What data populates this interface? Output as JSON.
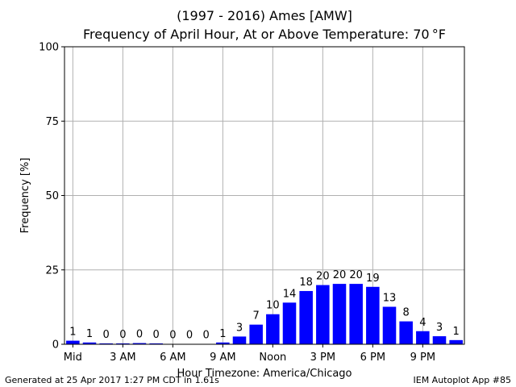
{
  "chart_data": {
    "type": "bar",
    "title": "(1997 - 2016) Ames [AMW]",
    "subtitle": "Frequency of April Hour, At or Above Temperature: 70 °F",
    "xlabel": "Hour Timezone: America/Chicago",
    "ylabel": "Frequency [%]",
    "ylim": [
      0,
      100
    ],
    "yticks": [
      0,
      25,
      50,
      75,
      100
    ],
    "xlim": [
      -0.5,
      23.5
    ],
    "xticks": [
      {
        "hour": 0,
        "label": "Mid"
      },
      {
        "hour": 3,
        "label": "3 AM"
      },
      {
        "hour": 6,
        "label": "6 AM"
      },
      {
        "hour": 9,
        "label": "9 AM"
      },
      {
        "hour": 12,
        "label": "Noon"
      },
      {
        "hour": 15,
        "label": "3 PM"
      },
      {
        "hour": 18,
        "label": "6 PM"
      },
      {
        "hour": 21,
        "label": "9 PM"
      }
    ],
    "grid": true,
    "bar_color": "#0000ff",
    "hours": [
      0,
      1,
      2,
      3,
      4,
      5,
      6,
      7,
      8,
      9,
      10,
      11,
      12,
      13,
      14,
      15,
      16,
      17,
      18,
      19,
      20,
      21,
      22,
      23
    ],
    "values": [
      1.2,
      0.6,
      0.3,
      0.3,
      0.4,
      0.3,
      0.1,
      0.1,
      0.1,
      0.6,
      2.6,
      6.6,
      10.1,
      14.0,
      17.9,
      19.9,
      20.3,
      20.3,
      19.3,
      12.6,
      7.7,
      4.4,
      2.7,
      1.4
    ],
    "data_labels": [
      "1",
      "1",
      "0",
      "0",
      "0",
      "0",
      "0",
      "0",
      "0",
      "1",
      "3",
      "7",
      "10",
      "14",
      "18",
      "20",
      "20",
      "20",
      "19",
      "13",
      "8",
      "4",
      "3",
      "1"
    ]
  },
  "footer": {
    "left": "Generated at 25 Apr 2017 1:27 PM CDT in 1.61s",
    "right": "IEM Autoplot App #85"
  }
}
